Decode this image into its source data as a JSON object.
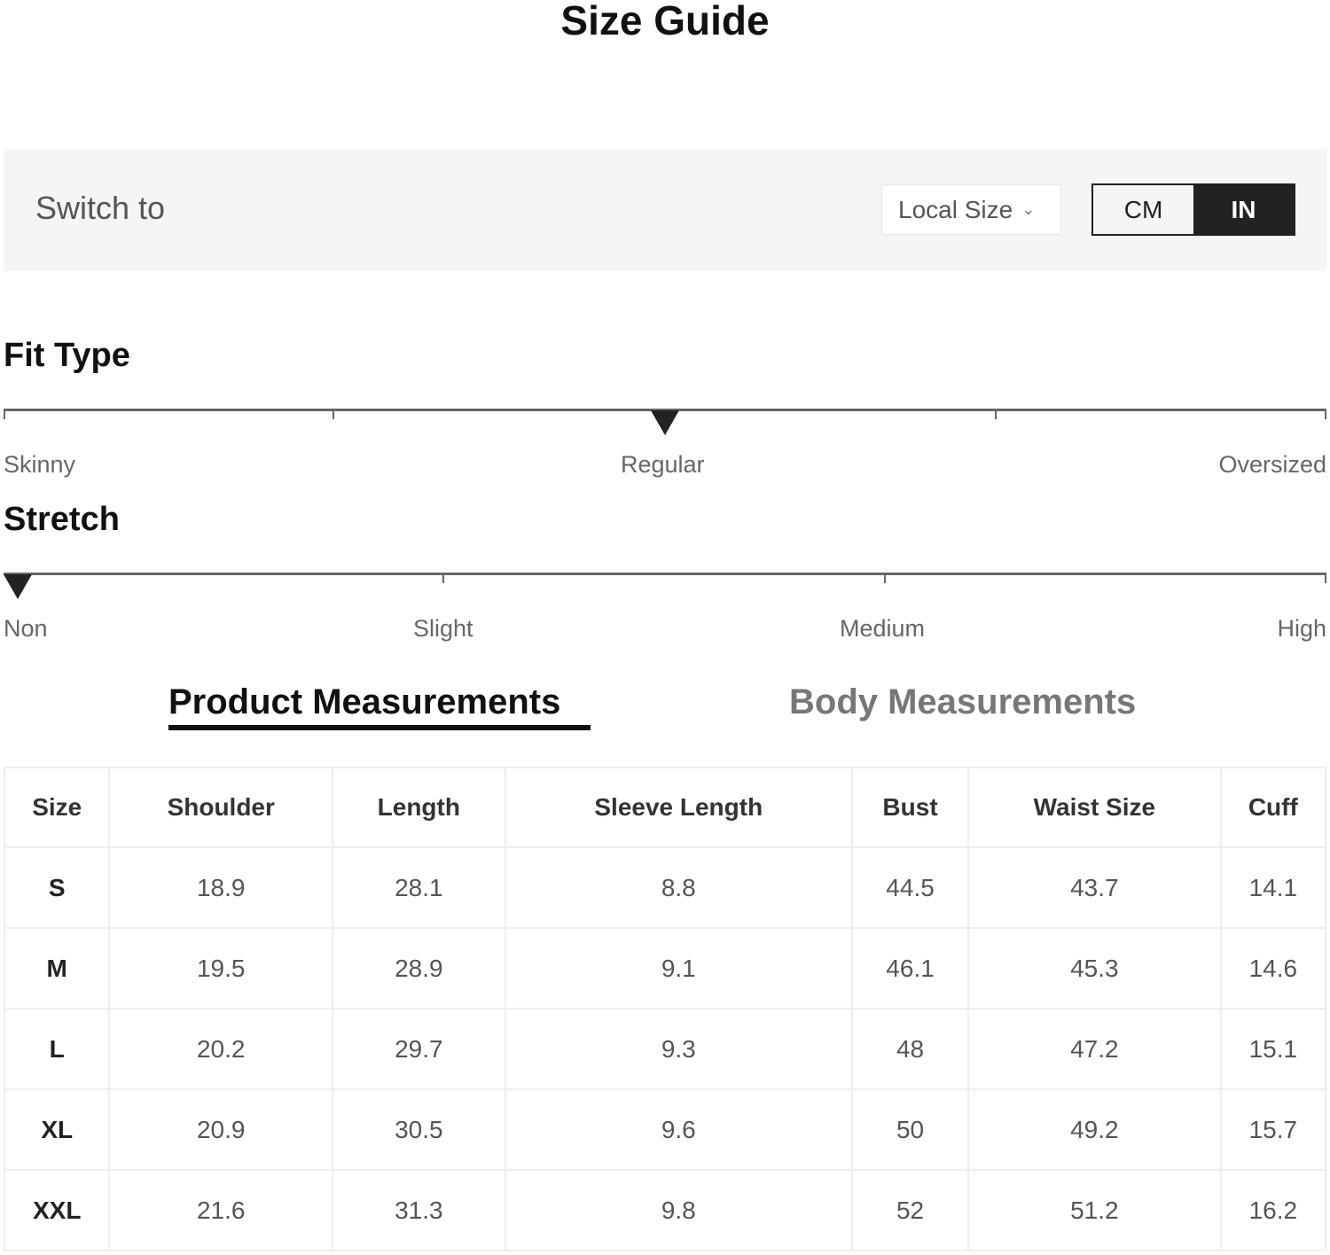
{
  "title": "Size Guide",
  "toolbar": {
    "switch_label": "Switch to",
    "size_select": "Local Size",
    "units": [
      "CM",
      "IN"
    ],
    "active_unit": "IN"
  },
  "fit_type": {
    "heading": "Fit Type",
    "labels": [
      "Skinny",
      "Regular",
      "Oversized"
    ],
    "value": "Regular",
    "level": 0.5
  },
  "stretch": {
    "heading": "Stretch",
    "labels": [
      "Non",
      "Slight",
      "Medium",
      "High"
    ],
    "value": "Non",
    "level": 0
  },
  "tabs": [
    {
      "label": "Product Measurements",
      "active": true
    },
    {
      "label": "Body Measurements",
      "active": false
    }
  ],
  "table": {
    "headers": [
      "Size",
      "Shoulder",
      "Length",
      "Sleeve Length",
      "Bust",
      "Waist Size",
      "Cuff"
    ],
    "rows": [
      [
        "S",
        "18.9",
        "28.1",
        "8.8",
        "44.5",
        "43.7",
        "14.1"
      ],
      [
        "M",
        "19.5",
        "28.9",
        "9.1",
        "46.1",
        "45.3",
        "14.6"
      ],
      [
        "L",
        "20.2",
        "29.7",
        "9.3",
        "48",
        "47.2",
        "15.1"
      ],
      [
        "XL",
        "20.9",
        "30.5",
        "9.6",
        "50",
        "49.2",
        "15.7"
      ],
      [
        "XXL",
        "21.6",
        "31.3",
        "9.8",
        "52",
        "51.2",
        "16.2"
      ]
    ]
  }
}
